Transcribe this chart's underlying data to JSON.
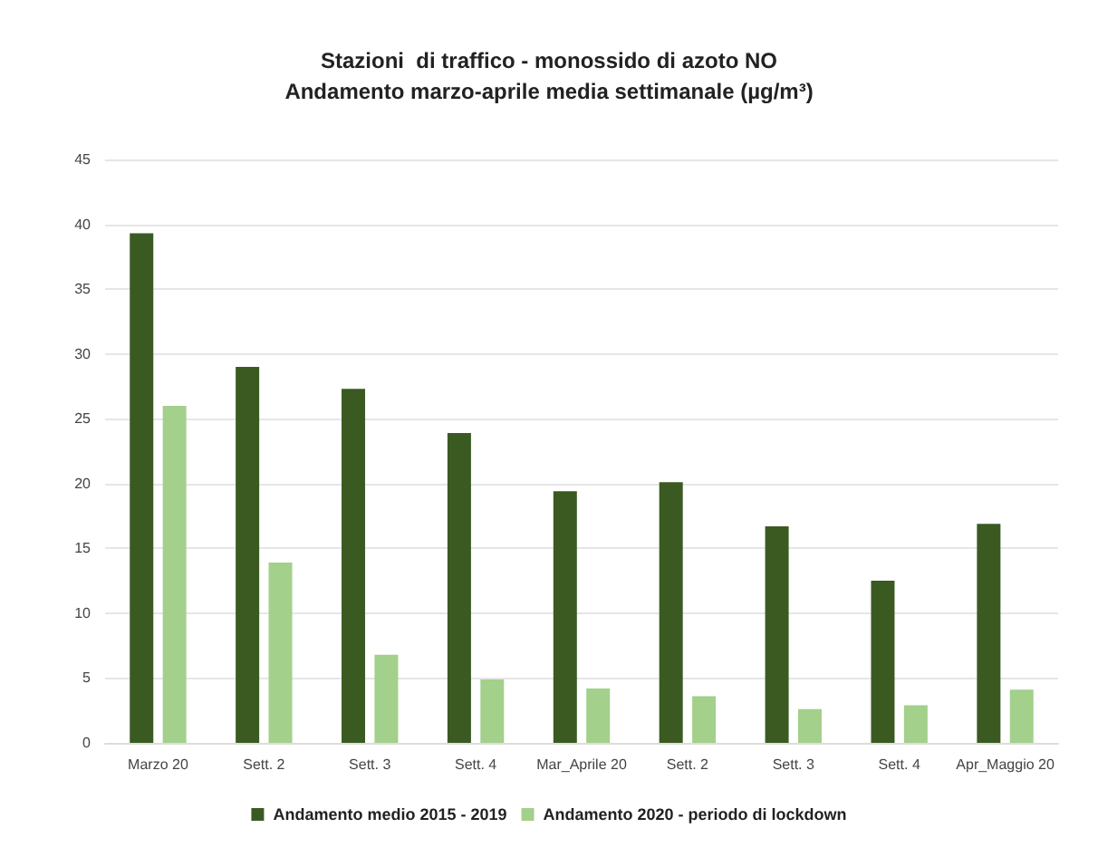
{
  "chart_data": {
    "type": "bar",
    "title": "Stazioni  di traffico - monossido di azoto NO\nAndamento marzo-aprile media settimanale (µg/m³)",
    "categories": [
      "Marzo 20",
      "Sett. 2",
      "Sett. 3",
      "Sett. 4",
      "Mar_Aprile 20",
      "Sett. 2",
      "Sett. 3",
      "Sett. 4",
      "Apr_Maggio 20"
    ],
    "series": [
      {
        "name": "Andamento medio 2015 - 2019",
        "color": "#3a5a22",
        "values": [
          39.3,
          29,
          27.3,
          23.9,
          19.4,
          20.1,
          16.7,
          12.5,
          16.9
        ]
      },
      {
        "name": "Andamento 2020 - periodo di lockdown",
        "color": "#a3d08a",
        "values": [
          26,
          13.9,
          6.8,
          4.9,
          4.2,
          3.6,
          2.6,
          2.9,
          4.1
        ]
      }
    ],
    "ylim": [
      0,
      45
    ],
    "yticks": [
      0,
      5,
      10,
      15,
      20,
      25,
      30,
      35,
      40,
      45
    ],
    "grid": "y",
    "legend": "bottom"
  }
}
